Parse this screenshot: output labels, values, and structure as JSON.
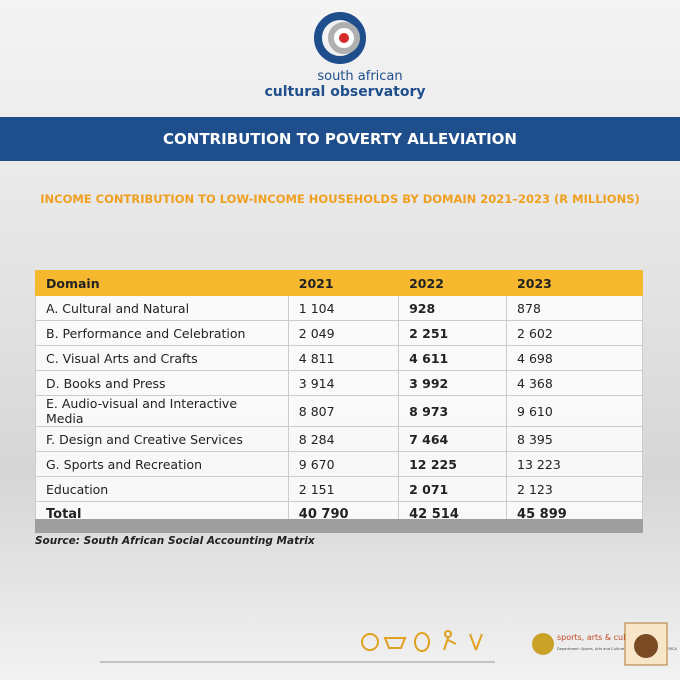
{
  "header": {
    "logo_line1": "south african",
    "logo_line2": "cultural observatory",
    "banner": "CONTRIBUTION TO POVERTY ALLEVIATION"
  },
  "subtitle": "INCOME CONTRIBUTION TO LOW-INCOME HOUSEHOLDS BY DOMAIN 2021–2023 (R MILLIONS)",
  "table": {
    "columns": [
      "Domain",
      "2021",
      "2022",
      "2023"
    ],
    "rows": [
      [
        "A. Cultural and Natural",
        "1 104",
        "928",
        "878"
      ],
      [
        "B. Performance and Celebration",
        "2 049",
        "2 251",
        "2 602"
      ],
      [
        "C. Visual Arts and Crafts",
        "4 811",
        "4 611",
        "4 698"
      ],
      [
        "D. Books and Press",
        "3 914",
        "3 992",
        "4 368"
      ],
      [
        "E. Audio-visual and Interactive Media",
        "8 807",
        "8 973",
        "9 610"
      ],
      [
        "F. Design and Creative Services",
        "8 284",
        "7 464",
        "8 395"
      ],
      [
        "G. Sports and Recreation",
        "9 670",
        "12 225",
        "13 223"
      ],
      [
        "Education",
        "2 151",
        "2 071",
        "2 123"
      ]
    ],
    "total": [
      "Total",
      "40 790",
      "42 514",
      "45 899"
    ]
  },
  "source": "Source: South African Social Accounting Matrix",
  "footer": {
    "department": "sports, arts & culture",
    "department_sub": "Department: Sports, Arts and Culture REPUBLIC OF SOUTH AFRICA"
  }
}
